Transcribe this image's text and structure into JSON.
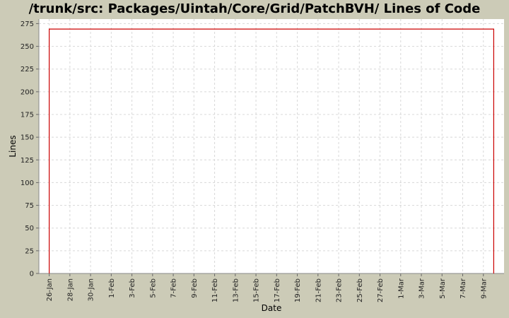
{
  "chart_data": {
    "type": "line",
    "title": "/trunk/src: Packages/Uintah/Core/Grid/PatchBVH/ Lines of Code",
    "xlabel": "Date",
    "ylabel": "Lines",
    "ylim": [
      0,
      280
    ],
    "yticks": [
      0,
      25,
      50,
      75,
      100,
      125,
      150,
      175,
      200,
      225,
      250,
      275
    ],
    "xlim": [
      "2009-01-25",
      "2009-03-11"
    ],
    "xticks": [
      {
        "date": "2009-01-26",
        "label": "26-Jan"
      },
      {
        "date": "2009-01-28",
        "label": "28-Jan"
      },
      {
        "date": "2009-01-30",
        "label": "30-Jan"
      },
      {
        "date": "2009-02-01",
        "label": "1-Feb"
      },
      {
        "date": "2009-02-03",
        "label": "3-Feb"
      },
      {
        "date": "2009-02-05",
        "label": "5-Feb"
      },
      {
        "date": "2009-02-07",
        "label": "7-Feb"
      },
      {
        "date": "2009-02-09",
        "label": "9-Feb"
      },
      {
        "date": "2009-02-11",
        "label": "11-Feb"
      },
      {
        "date": "2009-02-13",
        "label": "13-Feb"
      },
      {
        "date": "2009-02-15",
        "label": "15-Feb"
      },
      {
        "date": "2009-02-17",
        "label": "17-Feb"
      },
      {
        "date": "2009-02-19",
        "label": "19-Feb"
      },
      {
        "date": "2009-02-21",
        "label": "21-Feb"
      },
      {
        "date": "2009-02-23",
        "label": "23-Feb"
      },
      {
        "date": "2009-02-25",
        "label": "25-Feb"
      },
      {
        "date": "2009-02-27",
        "label": "27-Feb"
      },
      {
        "date": "2009-03-01",
        "label": "1-Mar"
      },
      {
        "date": "2009-03-03",
        "label": "3-Mar"
      },
      {
        "date": "2009-03-05",
        "label": "5-Mar"
      },
      {
        "date": "2009-03-07",
        "label": "7-Mar"
      },
      {
        "date": "2009-03-09",
        "label": "9-Mar"
      }
    ],
    "series": [
      {
        "color": "#cc0000",
        "points": [
          {
            "x": "2009-01-26",
            "y": 0
          },
          {
            "x": "2009-01-26",
            "y": 269
          },
          {
            "x": "2009-03-10",
            "y": 269
          },
          {
            "x": "2009-03-10",
            "y": 0
          }
        ]
      }
    ],
    "grid": true,
    "colors": {
      "background": "#cccbb7",
      "plot_background": "#ffffff",
      "grid": "#d8d8d8",
      "line": "#cc0000"
    }
  }
}
